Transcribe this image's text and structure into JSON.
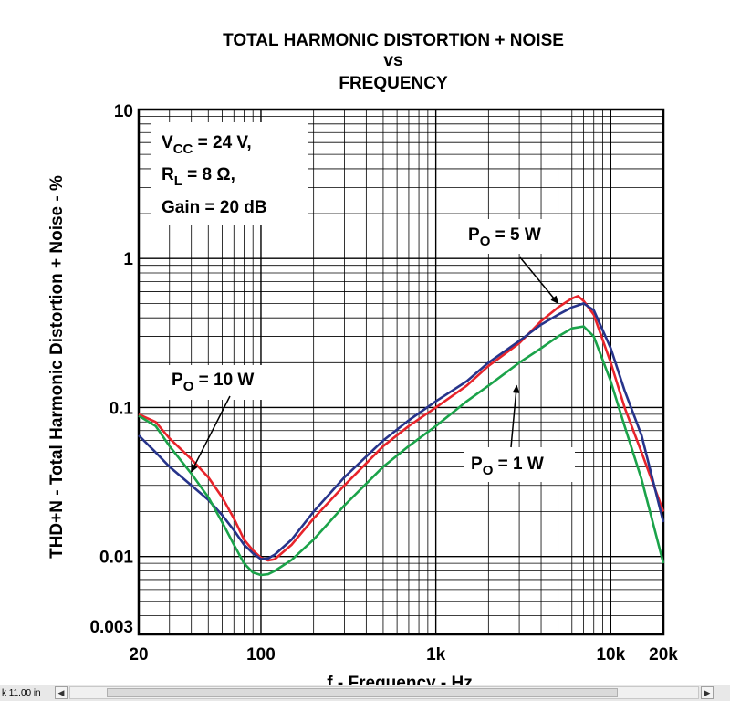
{
  "chart_data": {
    "type": "line",
    "title": [
      "TOTAL HARMONIC DISTORTION + NOISE",
      "vs",
      "FREQUENCY"
    ],
    "xlabel": "f - Frequency - Hz",
    "ylabel": "THD+N - Total Harmonic Distortion + Noise - %",
    "xscale": "log",
    "yscale": "log",
    "xlim": [
      20,
      20000
    ],
    "ylim": [
      0.003,
      10
    ],
    "grid": true,
    "x_tick_labels": [
      {
        "value": 20,
        "label": "20"
      },
      {
        "value": 100,
        "label": "100"
      },
      {
        "value": 1000,
        "label": "1k"
      },
      {
        "value": 10000,
        "label": "10k"
      },
      {
        "value": 20000,
        "label": "20k"
      }
    ],
    "y_tick_labels": [
      {
        "value": 10,
        "label": "10"
      },
      {
        "value": 1,
        "label": "1"
      },
      {
        "value": 0.1,
        "label": "0.1"
      },
      {
        "value": 0.01,
        "label": "0.01"
      },
      {
        "value": 0.003,
        "label": "0.003"
      }
    ],
    "conditions": {
      "vcc": {
        "main": "V",
        "sub": "CC",
        "rest": " = 24 V,"
      },
      "rl": {
        "main": "R",
        "sub": "L",
        "rest": " = 8 Ω,"
      },
      "gain": "Gain = 20 dB"
    },
    "series": [
      {
        "name": "PO = 10 W",
        "color": "#e8242b",
        "x": [
          20,
          25,
          30,
          40,
          50,
          60,
          70,
          80,
          90,
          100,
          110,
          120,
          150,
          200,
          300,
          500,
          700,
          1000,
          1500,
          2000,
          3000,
          4000,
          5000,
          6000,
          6500,
          7000,
          8000,
          10000,
          12000,
          15000,
          20000
        ],
        "y": [
          0.09,
          0.08,
          0.062,
          0.045,
          0.034,
          0.025,
          0.018,
          0.013,
          0.011,
          0.0098,
          0.0094,
          0.0096,
          0.012,
          0.018,
          0.03,
          0.055,
          0.075,
          0.1,
          0.14,
          0.19,
          0.27,
          0.38,
          0.47,
          0.54,
          0.56,
          0.52,
          0.42,
          0.2,
          0.1,
          0.05,
          0.02
        ]
      },
      {
        "name": "PO = 5 W",
        "color": "#27348b",
        "x": [
          20,
          25,
          30,
          40,
          50,
          60,
          70,
          80,
          90,
          100,
          110,
          120,
          150,
          200,
          300,
          500,
          700,
          1000,
          1500,
          2000,
          3000,
          4000,
          5000,
          6000,
          7000,
          8000,
          10000,
          12000,
          15000,
          20000
        ],
        "y": [
          0.065,
          0.05,
          0.04,
          0.03,
          0.024,
          0.019,
          0.015,
          0.012,
          0.0105,
          0.0096,
          0.0097,
          0.0103,
          0.013,
          0.02,
          0.034,
          0.06,
          0.082,
          0.11,
          0.15,
          0.2,
          0.28,
          0.36,
          0.42,
          0.47,
          0.5,
          0.45,
          0.25,
          0.13,
          0.065,
          0.017
        ]
      },
      {
        "name": "PO = 1 W",
        "color": "#1ba34a",
        "x": [
          20,
          25,
          30,
          40,
          50,
          60,
          70,
          80,
          90,
          100,
          110,
          120,
          150,
          200,
          300,
          500,
          700,
          1000,
          1500,
          2000,
          3000,
          4000,
          5000,
          6000,
          7000,
          8000,
          10000,
          12000,
          15000,
          20000
        ],
        "y": [
          0.088,
          0.075,
          0.055,
          0.036,
          0.025,
          0.017,
          0.012,
          0.009,
          0.0078,
          0.0075,
          0.0076,
          0.008,
          0.0095,
          0.013,
          0.022,
          0.04,
          0.055,
          0.075,
          0.11,
          0.14,
          0.2,
          0.25,
          0.3,
          0.34,
          0.35,
          0.3,
          0.15,
          0.075,
          0.033,
          0.009
        ]
      }
    ],
    "annotations": [
      {
        "main": "P",
        "sub": "O",
        "rest": " = 10 W",
        "target_x": 40,
        "target_y": 0.037
      },
      {
        "main": "P",
        "sub": "O",
        "rest": " = 5 W",
        "target_x": 5000,
        "target_y": 0.5
      },
      {
        "main": "P",
        "sub": "O",
        "rest": " = 1 W",
        "target_x": 2900,
        "target_y": 0.14
      }
    ]
  },
  "status_bar": {
    "size_text": "k 11.00 in",
    "scroll_left_icon": "scroll-left-arrow-icon",
    "scroll_right_icon": "scroll-right-arrow-icon"
  }
}
